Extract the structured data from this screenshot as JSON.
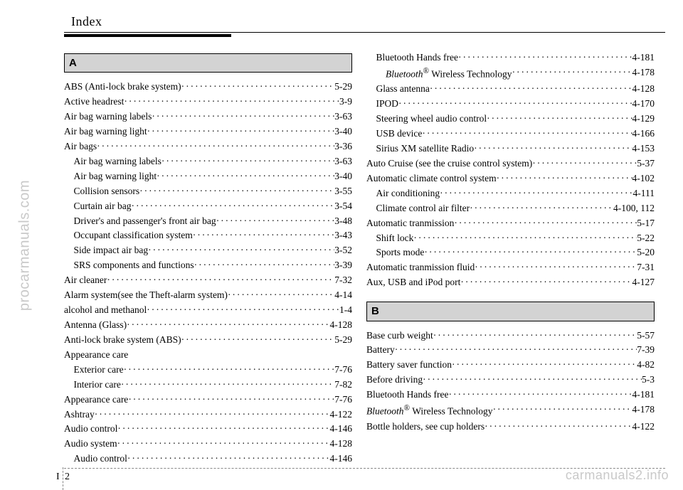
{
  "header": {
    "title": "Index"
  },
  "footer": {
    "tab": "I",
    "page": "2"
  },
  "watermarks": {
    "left": "procarmanuals.com",
    "bottomRight": "carmanuals2.info"
  },
  "sections": {
    "A": {
      "head": "A"
    },
    "B": {
      "head": "B"
    }
  },
  "col1": [
    {
      "type": "head",
      "key": "sections.A.head"
    },
    {
      "label": "ABS (Anti-lock brake system)",
      "page": "5-29"
    },
    {
      "label": "Active headrest ",
      "page": "3-9"
    },
    {
      "label": "Air bag warning labels",
      "page": "3-63"
    },
    {
      "label": "Air bag warning light ",
      "page": "3-40"
    },
    {
      "label": "Air bags ",
      "page": "3-36"
    },
    {
      "label": "Air bag warning labels ",
      "page": "3-63",
      "indent": true
    },
    {
      "label": "Air bag warning light ",
      "page": "3-40",
      "indent": true
    },
    {
      "label": "Collision sensors ",
      "page": "3-55",
      "indent": true
    },
    {
      "label": "Curtain air bag ",
      "page": "3-54",
      "indent": true
    },
    {
      "label": "Driver's and passenger's front air bag ",
      "page": "3-48",
      "indent": true
    },
    {
      "label": "Occupant classification system",
      "page": "3-43",
      "indent": true
    },
    {
      "label": "Side impact air bag",
      "page": "3-52",
      "indent": true
    },
    {
      "label": "SRS components and functions ",
      "page": "3-39",
      "indent": true
    },
    {
      "label": "Air cleaner ",
      "page": "7-32"
    },
    {
      "label": "Alarm system(see the Theft-alarm system) ",
      "page": "4-14"
    },
    {
      "label": "alcohol and methanol ",
      "page": "1-4"
    },
    {
      "label": "Antenna (Glass) ",
      "page": "4-128"
    },
    {
      "label": "Anti-lock brake system (ABS)",
      "page": "5-29"
    },
    {
      "label": "Appearance care",
      "nolead": true
    },
    {
      "label": "Exterior care ",
      "page": "7-76",
      "indent": true
    },
    {
      "label": "Interior care ",
      "page": "7-82",
      "indent": true
    },
    {
      "label": "Appearance care ",
      "page": "7-76"
    },
    {
      "label": "Ashtray ",
      "page": "4-122"
    },
    {
      "label": "Audio control ",
      "page": "4-146"
    },
    {
      "label": "Audio system ",
      "page": "4-128"
    },
    {
      "label": "Audio control",
      "page": "4-146",
      "indent": true
    }
  ],
  "col2": [
    {
      "label": "Bluetooth Hands free",
      "page": "4-181",
      "indent": true
    },
    {
      "labelHtml": "<span class='ital'>Bluetooth</span><sup>®</sup> Wireless Technology ",
      "page": "4-178",
      "indent": true
    },
    {
      "label": "Glass antenna",
      "page": "4-128",
      "indent": true
    },
    {
      "label": "IPOD",
      "page": "4-170",
      "indent": true
    },
    {
      "label": "Steering wheel audio control",
      "page": "4-129",
      "indent": true
    },
    {
      "label": "USB device ",
      "page": "4-166",
      "indent": true
    },
    {
      "label": "Sirius XM satellite Radio",
      "page": "4-153",
      "indent": true
    },
    {
      "label": "Auto Cruise (see the cruise control system) ",
      "page": "5-37"
    },
    {
      "label": "Automatic climate control system ",
      "page": "4-102"
    },
    {
      "label": "Air conditioning",
      "page": "4-111",
      "indent": true
    },
    {
      "label": "Climate control air filter ",
      "page": "4-100, 112",
      "indent": true
    },
    {
      "label": "Automatic tranmission ",
      "page": "5-17"
    },
    {
      "label": "Shift lock ",
      "page": "5-22",
      "indent": true
    },
    {
      "label": "Sports mode ",
      "page": "5-20",
      "indent": true
    },
    {
      "label": "Automatic tranmission fluid ",
      "page": "7-31"
    },
    {
      "label": "Aux, USB and iPod port ",
      "page": "4-127"
    },
    {
      "type": "spacer"
    },
    {
      "type": "head",
      "key": "sections.B.head"
    },
    {
      "label": "Base curb weight",
      "page": "5-57"
    },
    {
      "label": "Battery",
      "page": "7-39"
    },
    {
      "label": "Battery saver function",
      "page": "4-82"
    },
    {
      "label": "Before driving ",
      "page": "5-3"
    },
    {
      "label": "Bluetooth Hands free ",
      "page": "4-181"
    },
    {
      "labelHtml": "<span class='ital'>Bluetooth</span><sup>®</sup> Wireless Technology",
      "page": "4-178"
    },
    {
      "label": "Bottle holders, see cup holders",
      "page": "4-122"
    }
  ]
}
